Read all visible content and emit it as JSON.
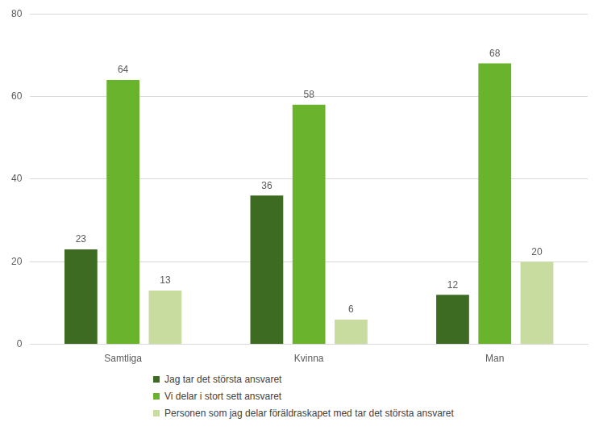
{
  "chart_data": {
    "type": "bar",
    "categories": [
      "Samtliga",
      "Kvinna",
      "Man"
    ],
    "series": [
      {
        "name": "Jag tar det största ansvaret",
        "color": "#3d6b21",
        "values": [
          23,
          36,
          12
        ]
      },
      {
        "name": "Vi delar i stort sett ansvaret",
        "color": "#6ab42d",
        "values": [
          64,
          58,
          68
        ]
      },
      {
        "name": "Personen som jag delar föräldraskapet med tar det största ansvaret",
        "color": "#c9dca0",
        "values": [
          13,
          6,
          20
        ]
      }
    ],
    "ylim": [
      0,
      80
    ],
    "yticks": [
      0,
      20,
      40,
      60,
      80
    ],
    "grid": true,
    "legend": "bottom",
    "data_labels": true
  }
}
